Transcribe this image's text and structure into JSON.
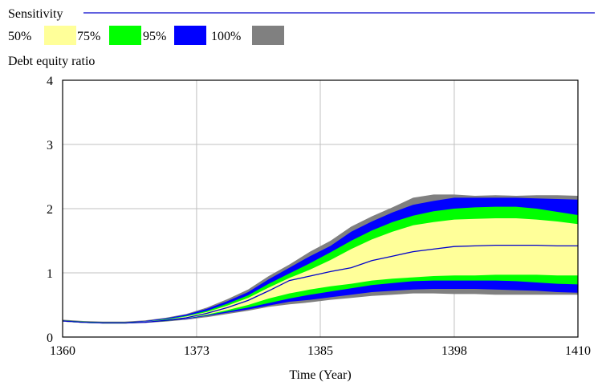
{
  "chart_data": {
    "type": "area",
    "title": "Sensitivity",
    "ylabel": "Debt equity ratio",
    "xlabel": "Time (Year)",
    "xlim": [
      1360,
      1410
    ],
    "ylim": [
      0,
      4
    ],
    "x_ticks": [
      "1360",
      "1373",
      "1385",
      "1398",
      "1410"
    ],
    "y_ticks": [
      "0",
      "1",
      "2",
      "3",
      "4"
    ],
    "grid": true,
    "legend_position": "top-left",
    "legend": [
      {
        "label": "50%",
        "color": "#ffff99"
      },
      {
        "label": "75%",
        "color": "#00ff00"
      },
      {
        "label": "95%",
        "color": "#0000ff"
      },
      {
        "label": "100%",
        "color": "#808080"
      }
    ],
    "series_color": "#0000cc",
    "x": [
      1360,
      1362,
      1364,
      1366,
      1368,
      1370,
      1372,
      1374,
      1376,
      1378,
      1380,
      1382,
      1384,
      1386,
      1388,
      1390,
      1392,
      1394,
      1396,
      1398,
      1400,
      1402,
      1404,
      1406,
      1408,
      1410
    ],
    "median": [
      0.25,
      0.23,
      0.22,
      0.22,
      0.23,
      0.26,
      0.3,
      0.37,
      0.46,
      0.57,
      0.72,
      0.88,
      0.95,
      1.02,
      1.08,
      1.19,
      1.26,
      1.33,
      1.37,
      1.41,
      1.42,
      1.43,
      1.43,
      1.43,
      1.42,
      1.42
    ],
    "bands": {
      "p100": {
        "upper": [
          0.27,
          0.25,
          0.24,
          0.24,
          0.26,
          0.3,
          0.36,
          0.46,
          0.59,
          0.74,
          0.95,
          1.13,
          1.33,
          1.5,
          1.72,
          1.88,
          2.02,
          2.17,
          2.22,
          2.22,
          2.2,
          2.21,
          2.2,
          2.21,
          2.21,
          2.2
        ],
        "lower": [
          0.24,
          0.22,
          0.21,
          0.21,
          0.22,
          0.24,
          0.27,
          0.31,
          0.36,
          0.41,
          0.47,
          0.51,
          0.54,
          0.58,
          0.61,
          0.64,
          0.66,
          0.68,
          0.68,
          0.67,
          0.67,
          0.66,
          0.66,
          0.66,
          0.66,
          0.66
        ]
      },
      "p95": {
        "upper": [
          0.26,
          0.24,
          0.23,
          0.23,
          0.25,
          0.29,
          0.35,
          0.44,
          0.56,
          0.7,
          0.9,
          1.08,
          1.26,
          1.42,
          1.64,
          1.8,
          1.94,
          2.06,
          2.12,
          2.17,
          2.17,
          2.17,
          2.17,
          2.16,
          2.15,
          2.14
        ],
        "lower": [
          0.24,
          0.22,
          0.21,
          0.21,
          0.23,
          0.25,
          0.28,
          0.33,
          0.38,
          0.43,
          0.49,
          0.55,
          0.58,
          0.62,
          0.66,
          0.7,
          0.72,
          0.74,
          0.75,
          0.75,
          0.75,
          0.74,
          0.73,
          0.72,
          0.7,
          0.69
        ]
      },
      "p75": {
        "upper": [
          0.26,
          0.24,
          0.23,
          0.23,
          0.24,
          0.28,
          0.33,
          0.41,
          0.52,
          0.65,
          0.83,
          0.99,
          1.15,
          1.32,
          1.5,
          1.66,
          1.79,
          1.89,
          1.96,
          2.0,
          2.02,
          2.03,
          2.03,
          2.0,
          1.95,
          1.9
        ],
        "lower": [
          0.24,
          0.22,
          0.21,
          0.21,
          0.23,
          0.25,
          0.29,
          0.34,
          0.4,
          0.46,
          0.53,
          0.6,
          0.66,
          0.71,
          0.76,
          0.81,
          0.84,
          0.87,
          0.88,
          0.88,
          0.88,
          0.88,
          0.87,
          0.85,
          0.83,
          0.82
        ]
      },
      "p50": {
        "upper": [
          0.25,
          0.23,
          0.22,
          0.22,
          0.24,
          0.27,
          0.32,
          0.39,
          0.49,
          0.61,
          0.77,
          0.92,
          1.05,
          1.2,
          1.37,
          1.52,
          1.64,
          1.74,
          1.79,
          1.83,
          1.84,
          1.85,
          1.85,
          1.83,
          1.8,
          1.76
        ],
        "lower": [
          0.24,
          0.22,
          0.21,
          0.21,
          0.23,
          0.26,
          0.29,
          0.35,
          0.42,
          0.5,
          0.6,
          0.68,
          0.74,
          0.79,
          0.83,
          0.88,
          0.91,
          0.93,
          0.95,
          0.96,
          0.96,
          0.97,
          0.97,
          0.97,
          0.96,
          0.96
        ]
      }
    }
  }
}
